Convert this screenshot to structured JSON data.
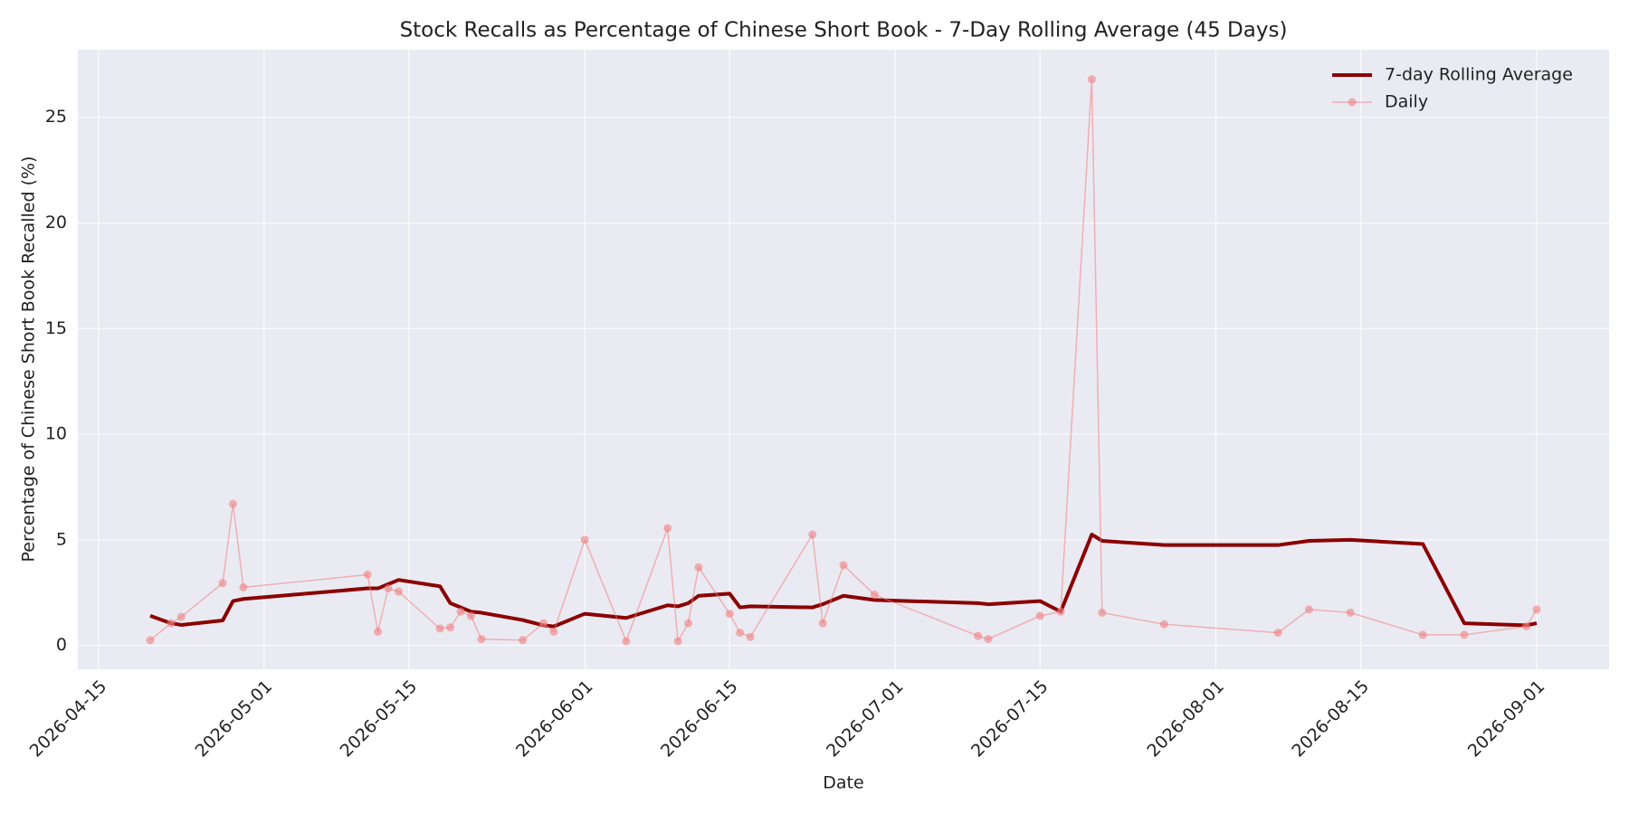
{
  "chart_data": {
    "type": "line",
    "title": "Stock Recalls as Percentage of Chinese Short Book - 7-Day Rolling Average (45 Days)",
    "x_label": "Date",
    "y_label": "Percentage of Chinese Short Book Recalled (%)",
    "x": [
      "2026-04-20",
      "2026-04-22",
      "2026-04-23",
      "2026-04-27",
      "2026-04-28",
      "2026-04-29",
      "2026-05-11",
      "2026-05-12",
      "2026-05-13",
      "2026-05-14",
      "2026-05-18",
      "2026-05-19",
      "2026-05-20",
      "2026-05-21",
      "2026-05-22",
      "2026-05-26",
      "2026-05-28",
      "2026-05-29",
      "2026-06-01",
      "2026-06-05",
      "2026-06-09",
      "2026-06-10",
      "2026-06-11",
      "2026-06-12",
      "2026-06-15",
      "2026-06-16",
      "2026-06-17",
      "2026-06-23",
      "2026-06-24",
      "2026-06-26",
      "2026-06-29",
      "2026-07-09",
      "2026-07-10",
      "2026-07-15",
      "2026-07-17",
      "2026-07-20",
      "2026-07-21",
      "2026-07-27",
      "2026-08-07",
      "2026-08-10",
      "2026-08-14",
      "2026-08-21",
      "2026-08-25",
      "2026-08-31",
      "2026-09-01"
    ],
    "series": [
      {
        "name": "7-day Rolling Average",
        "color": "#8b0000",
        "line_width": 4,
        "values": [
          1.4,
          1.05,
          0.97,
          1.18,
          2.1,
          2.2,
          2.7,
          2.7,
          2.9,
          3.1,
          2.8,
          2.0,
          1.8,
          1.6,
          1.55,
          1.2,
          0.95,
          0.9,
          1.5,
          1.3,
          1.9,
          1.85,
          2.0,
          2.35,
          2.45,
          1.8,
          1.85,
          1.8,
          1.95,
          2.35,
          2.15,
          2.0,
          1.95,
          2.1,
          1.6,
          5.25,
          4.95,
          4.75,
          4.75,
          4.95,
          5.0,
          4.8,
          1.05,
          0.95,
          1.05
        ]
      },
      {
        "name": "Daily",
        "color": "#f08080",
        "line_width": 1.5,
        "marker": "circle",
        "values": [
          0.25,
          1.05,
          1.35,
          2.95,
          6.7,
          2.75,
          3.35,
          0.65,
          2.7,
          2.55,
          0.8,
          0.85,
          1.6,
          1.4,
          0.3,
          0.25,
          1.05,
          0.65,
          5.0,
          0.2,
          5.55,
          0.2,
          1.05,
          3.7,
          1.5,
          0.6,
          0.4,
          5.25,
          1.05,
          3.8,
          2.4,
          0.45,
          0.3,
          1.4,
          1.6,
          26.8,
          1.55,
          1.0,
          0.6,
          1.7,
          1.55,
          0.5,
          0.5,
          0.9,
          1.7
        ]
      }
    ],
    "xlim": [
      "2026-04-13",
      "2026-09-08"
    ],
    "xticks": [
      "2026-04-15",
      "2026-05-01",
      "2026-05-15",
      "2026-06-01",
      "2026-06-15",
      "2026-07-01",
      "2026-07-15",
      "2026-08-01",
      "2026-08-15",
      "2026-09-01"
    ],
    "ylim": [
      -1.13,
      28.2
    ],
    "yticks": [
      0,
      5,
      10,
      15,
      20,
      25
    ],
    "grid": true,
    "legend": "upper right"
  }
}
